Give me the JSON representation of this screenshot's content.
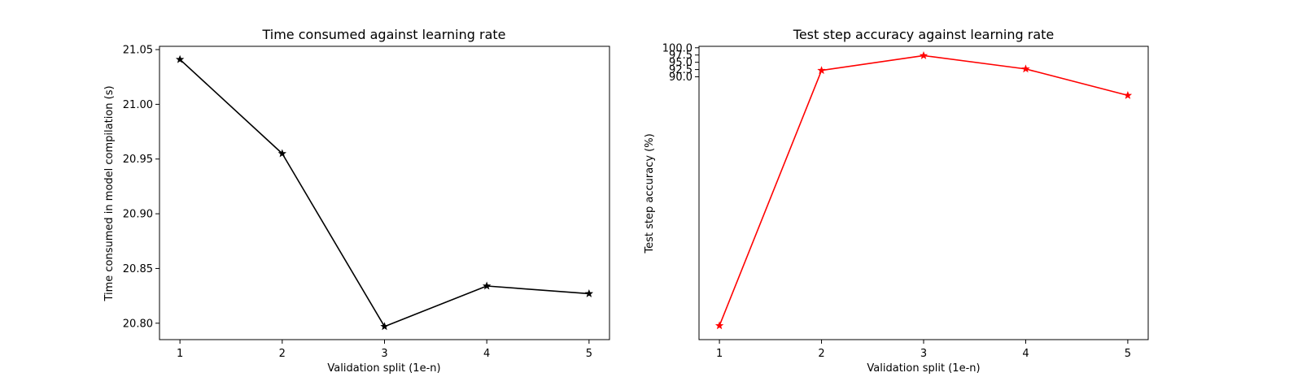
{
  "chart_data": [
    {
      "type": "line",
      "title": "Time consumed against learning rate",
      "xlabel": "Validation split (1e-n)",
      "ylabel": "Time consumed in model compilation (s)",
      "x": [
        1,
        2,
        3,
        4,
        5
      ],
      "xticks": [
        1,
        2,
        3,
        4,
        5
      ],
      "xlim": [
        0.8,
        5.2
      ],
      "ylim": [
        20.785,
        21.053
      ],
      "yticks": [
        20.8,
        20.85,
        20.9,
        20.95,
        21.0,
        21.05
      ],
      "ytick_labels": [
        "20.80",
        "20.85",
        "20.90",
        "20.95",
        "21.00",
        "21.05"
      ],
      "grid": false,
      "series": [
        {
          "values": [
            21.041,
            20.955,
            20.797,
            20.834,
            20.827
          ],
          "color": "#000000",
          "marker": "star"
        }
      ]
    },
    {
      "type": "line",
      "title": "Test step accuracy against learning rate",
      "xlabel": "Validation split (1e-n)",
      "ylabel": "Test step accuracy (%)",
      "x": [
        1,
        2,
        3,
        4,
        5
      ],
      "xticks": [
        1,
        2,
        3,
        4,
        5
      ],
      "xlim": [
        0.8,
        5.2
      ],
      "ylim": [
        -0.5,
        100.5
      ],
      "yticks": [
        90,
        92.5,
        95,
        97.5,
        100
      ],
      "ytick_labels": [
        "90.0",
        "92.5",
        "95.0",
        "97.5",
        "100.0"
      ],
      "grid": false,
      "series": [
        {
          "values": [
            4.3,
            92.2,
            97.3,
            92.7,
            83.6
          ],
          "color": "#ff0000",
          "marker": "star"
        }
      ]
    }
  ]
}
